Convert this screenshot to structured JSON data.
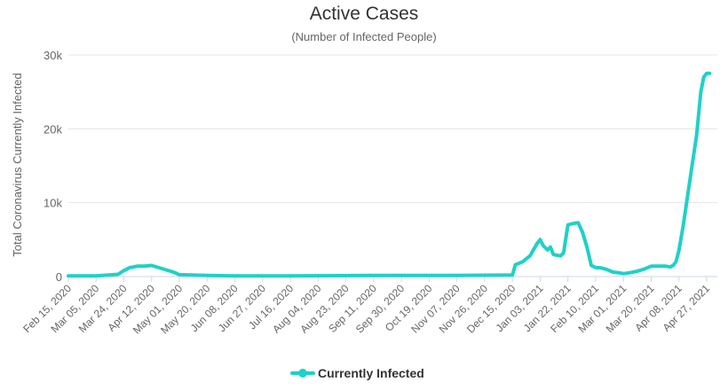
{
  "chart_data": {
    "type": "line",
    "title": "Active Cases",
    "subtitle": "(Number of Infected People)",
    "xlabel": "",
    "ylabel": "Total Coronavirus Currently Infected",
    "ylim": [
      0,
      30000
    ],
    "yticks": [
      {
        "value": 0,
        "label": "0"
      },
      {
        "value": 10000,
        "label": "10k"
      },
      {
        "value": 20000,
        "label": "20k"
      },
      {
        "value": 30000,
        "label": "30k"
      }
    ],
    "xticks": [
      "Feb 15, 2020",
      "Mar 05, 2020",
      "Mar 24, 2020",
      "Apr 12, 2020",
      "May 01, 2020",
      "May 20, 2020",
      "Jun 08, 2020",
      "Jun 27, 2020",
      "Jul 16, 2020",
      "Aug 04, 2020",
      "Aug 23, 2020",
      "Sep 11, 2020",
      "Sep 30, 2020",
      "Oct 19, 2020",
      "Nov 07, 2020",
      "Nov 26, 2020",
      "Dec 15, 2020",
      "Jan 03, 2021",
      "Jan 22, 2021",
      "Feb 10, 2021",
      "Mar 01, 2021",
      "Mar 20, 2021",
      "Apr 08, 2021",
      "Apr 27, 2021"
    ],
    "grid": true,
    "legend_position": "bottom",
    "series": [
      {
        "name": "Currently Infected",
        "color": "#1fd1c6",
        "x": [
          "Feb 15, 2020",
          "Mar 05, 2020",
          "Mar 20, 2020",
          "Mar 24, 2020",
          "Mar 28, 2020",
          "Apr 02, 2020",
          "Apr 07, 2020",
          "Apr 12, 2020",
          "Apr 17, 2020",
          "Apr 22, 2020",
          "Apr 27, 2020",
          "May 01, 2020",
          "May 20, 2020",
          "Jun 08, 2020",
          "Jul 16, 2020",
          "Sep 11, 2020",
          "Nov 07, 2020",
          "Dec 15, 2020",
          "Dec 17, 2020",
          "Dec 22, 2020",
          "Dec 27, 2020",
          "Jan 01, 2021",
          "Jan 03, 2021",
          "Jan 05, 2021",
          "Jan 08, 2021",
          "Jan 10, 2021",
          "Jan 12, 2021",
          "Jan 14, 2021",
          "Jan 17, 2021",
          "Jan 19, 2021",
          "Jan 22, 2021",
          "Jan 26, 2021",
          "Jan 29, 2021",
          "Feb 01, 2021",
          "Feb 04, 2021",
          "Feb 07, 2021",
          "Feb 10, 2021",
          "Feb 13, 2021",
          "Feb 17, 2021",
          "Feb 22, 2021",
          "Feb 26, 2021",
          "Mar 01, 2021",
          "Mar 05, 2021",
          "Mar 10, 2021",
          "Mar 15, 2021",
          "Mar 20, 2021",
          "Mar 25, 2021",
          "Mar 30, 2021",
          "Apr 02, 2021",
          "Apr 04, 2021",
          "Apr 06, 2021",
          "Apr 08, 2021",
          "Apr 11, 2021",
          "Apr 14, 2021",
          "Apr 17, 2021",
          "Apr 20, 2021",
          "Apr 23, 2021",
          "Apr 25, 2021",
          "Apr 27, 2021",
          "Apr 29, 2021"
        ],
        "values": [
          100,
          100,
          300,
          800,
          1200,
          1400,
          1400,
          1500,
          1200,
          900,
          600,
          250,
          150,
          100,
          100,
          150,
          150,
          200,
          1600,
          2000,
          2800,
          4500,
          5000,
          4200,
          3600,
          4000,
          3000,
          2900,
          2800,
          3200,
          7000,
          7200,
          7300,
          6000,
          4000,
          1500,
          1200,
          1200,
          1000,
          600,
          500,
          400,
          500,
          700,
          1000,
          1400,
          1400,
          1400,
          1300,
          1500,
          2000,
          3500,
          7000,
          11000,
          15000,
          19000,
          25000,
          27000,
          27500,
          27500
        ]
      }
    ]
  }
}
